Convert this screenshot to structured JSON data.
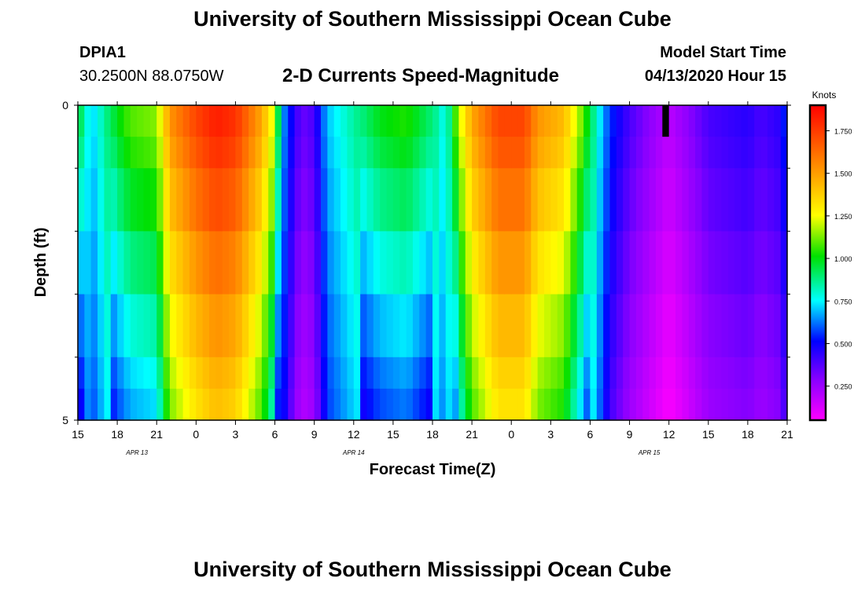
{
  "header": {
    "title": "University of Southern Mississippi Ocean Cube",
    "station_id": "DPIA1",
    "coordinates": "30.2500N 88.0750W",
    "chart_title": "2-D Currents Speed-Magnitude",
    "model_start_label": "Model Start Time",
    "model_start_value": "04/13/2020 Hour 15"
  },
  "footer": {
    "title": "University of Southern Mississippi Ocean Cube"
  },
  "chart_data": {
    "type": "heatmap",
    "title": "2-D Currents Speed-Magnitude",
    "xlabel": "Forecast Time(Z)",
    "ylabel": "Depth (ft)",
    "x_range_hours": [
      0,
      54
    ],
    "y_range_ft": [
      0,
      5
    ],
    "y_tick_labels": [
      {
        "value": 0,
        "label": "0"
      },
      {
        "value": 5,
        "label": "5"
      }
    ],
    "y_minor_ticks": [
      1,
      2,
      3,
      4
    ],
    "x_ticks": [
      {
        "hour": 0,
        "label": "15"
      },
      {
        "hour": 3,
        "label": "18"
      },
      {
        "hour": 6,
        "label": "21"
      },
      {
        "hour": 9,
        "label": "0"
      },
      {
        "hour": 12,
        "label": "3"
      },
      {
        "hour": 15,
        "label": "6"
      },
      {
        "hour": 18,
        "label": "9"
      },
      {
        "hour": 21,
        "label": "12"
      },
      {
        "hour": 24,
        "label": "15"
      },
      {
        "hour": 27,
        "label": "18"
      },
      {
        "hour": 30,
        "label": "21"
      },
      {
        "hour": 33,
        "label": "0"
      },
      {
        "hour": 36,
        "label": "3"
      },
      {
        "hour": 39,
        "label": "6"
      },
      {
        "hour": 42,
        "label": "9"
      },
      {
        "hour": 45,
        "label": "12"
      },
      {
        "hour": 48,
        "label": "15"
      },
      {
        "hour": 51,
        "label": "18"
      },
      {
        "hour": 54,
        "label": "21"
      }
    ],
    "date_labels": [
      {
        "hour": 4.5,
        "label": "APR 13"
      },
      {
        "hour": 21,
        "label": "APR 14"
      },
      {
        "hour": 43.5,
        "label": "APR 15"
      }
    ],
    "depth_rows_ft": [
      0.25,
      0.75,
      1.5,
      2.5,
      3.5,
      4.25,
      4.75
    ],
    "speed_profile_knots": [
      [
        0,
        1.0
      ],
      [
        1,
        0.7
      ],
      [
        2,
        0.85
      ],
      [
        3,
        1.0
      ],
      [
        4,
        1.1
      ],
      [
        6,
        1.15
      ],
      [
        7,
        1.55
      ],
      [
        9,
        1.75
      ],
      [
        10.5,
        1.85
      ],
      [
        12,
        1.8
      ],
      [
        14,
        1.5
      ],
      [
        15,
        1.2
      ],
      [
        15.5,
        0.7
      ],
      [
        16,
        0.55
      ],
      [
        17,
        0.35
      ],
      [
        18,
        0.4
      ],
      [
        19,
        0.7
      ],
      [
        21,
        0.85
      ],
      [
        23,
        1.0
      ],
      [
        25,
        1.05
      ],
      [
        27,
        0.9
      ],
      [
        28,
        0.75
      ],
      [
        29,
        1.2
      ],
      [
        30,
        1.5
      ],
      [
        32,
        1.75
      ],
      [
        34,
        1.75
      ],
      [
        35,
        1.55
      ],
      [
        37,
        1.45
      ],
      [
        38.5,
        1.1
      ],
      [
        39.5,
        0.8
      ],
      [
        40.5,
        0.55
      ],
      [
        42,
        0.4
      ],
      [
        45,
        0.2
      ],
      [
        46.5,
        0.3
      ],
      [
        48,
        0.4
      ],
      [
        51,
        0.45
      ],
      [
        52,
        0.4
      ],
      [
        53.5,
        0.45
      ],
      [
        54,
        0.6
      ]
    ],
    "missing_data": {
      "hour_start": 44.5,
      "hour_end": 45,
      "depth_start": 0,
      "depth_end": 0.5
    },
    "colorbar": {
      "label": "Knots",
      "min": 0.05,
      "max": 1.9,
      "tick_labels": [
        {
          "value": 1.75,
          "label": "1.750"
        },
        {
          "value": 1.5,
          "label": "1.500"
        },
        {
          "value": 1.25,
          "label": "1.250"
        },
        {
          "value": 1.0,
          "label": "1.000"
        },
        {
          "value": 0.75,
          "label": "0.750"
        },
        {
          "value": 0.5,
          "label": "0.500"
        },
        {
          "value": 0.25,
          "label": "0.250"
        }
      ]
    }
  }
}
